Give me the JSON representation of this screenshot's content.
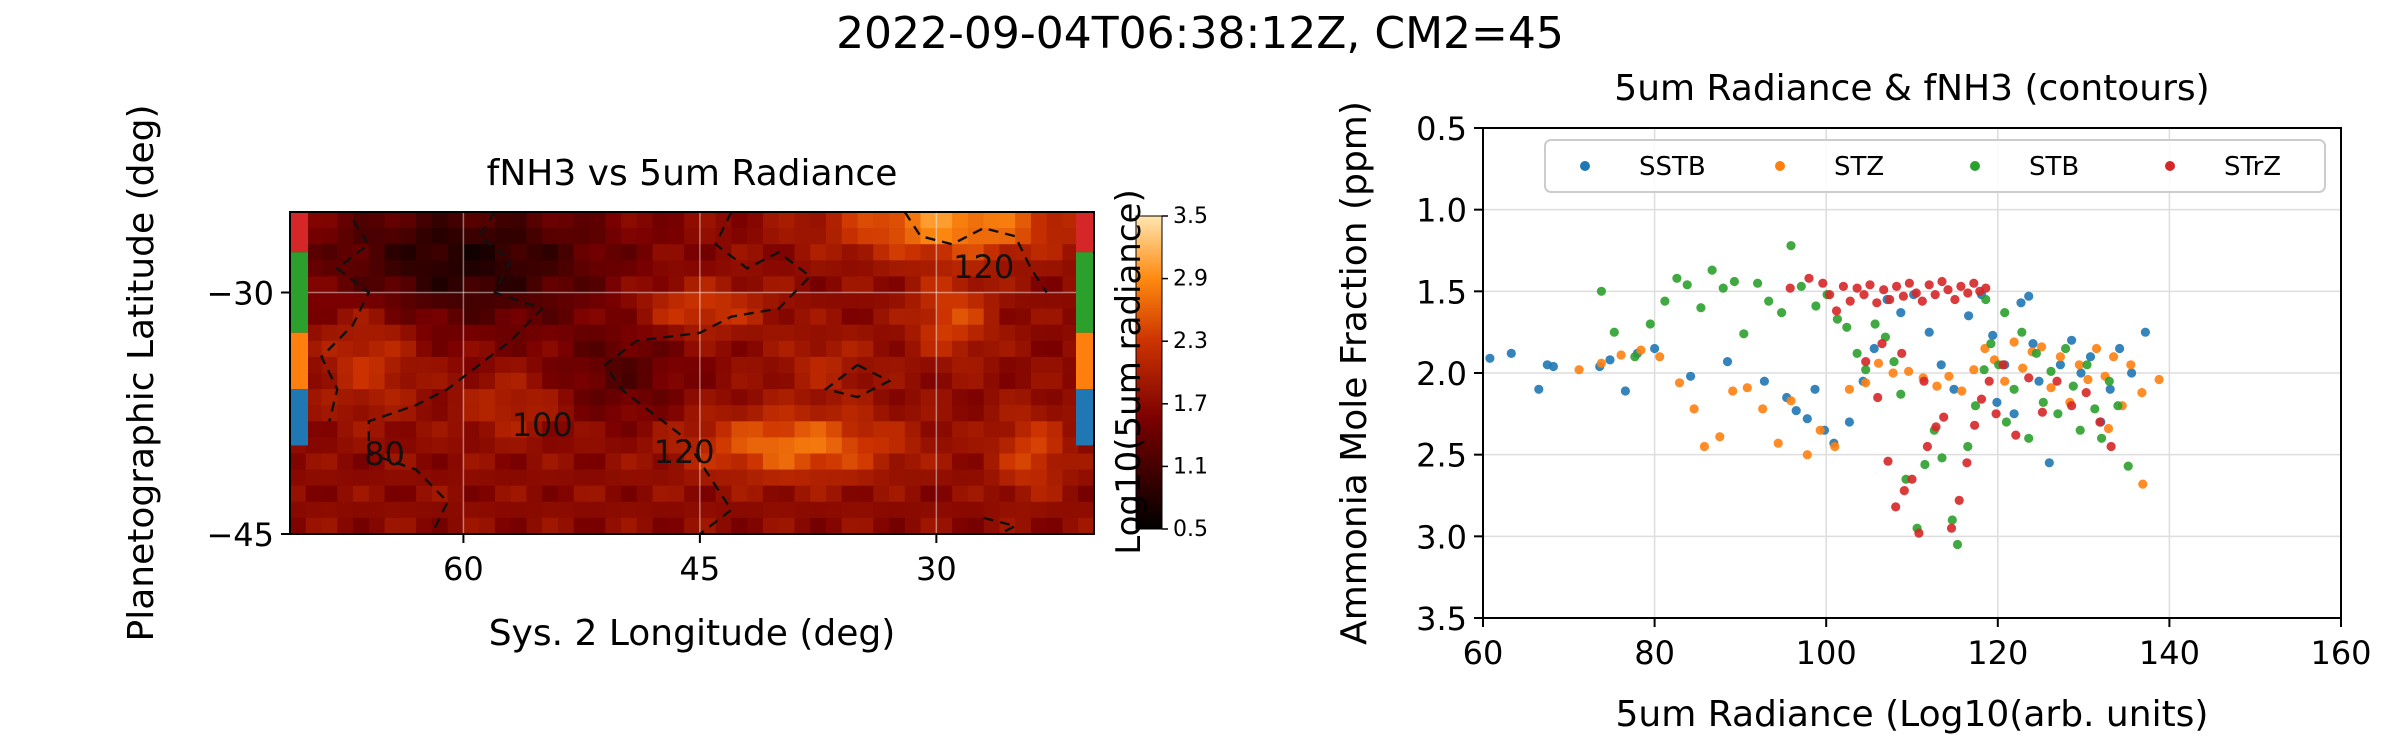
{
  "figure": {
    "suptitle": "2022-09-04T06:38:12Z, CM2=45"
  },
  "chart_data": [
    {
      "type": "heatmap",
      "title": "fNH3 vs 5um Radiance",
      "xlabel": "Sys. 2 Longitude (deg)",
      "ylabel": "Planetographic Latitude (deg)",
      "xlim": [
        71,
        20
      ],
      "ylim": [
        -45,
        -25
      ],
      "xticks": [
        60,
        45,
        30
      ],
      "yticks": [
        -30,
        -45
      ],
      "colorbar": {
        "label": "Log10(5um radiance)",
        "range": [
          0.5,
          3.5
        ],
        "ticks": [
          "3.5",
          "2.9",
          "2.3",
          "1.7",
          "1.1",
          "0.5"
        ],
        "colormap": "gist_heat"
      },
      "contour_labels": [
        {
          "text": "120",
          "lon": 27,
          "lat": -29.1
        },
        {
          "text": "100",
          "lon": 55,
          "lat": -38.9
        },
        {
          "text": "80",
          "lon": 65,
          "lat": -40.7
        },
        {
          "text": "120",
          "lon": 46,
          "lat": -40.6
        }
      ],
      "band_markers": [
        {
          "band": "STrZ",
          "lat_range": [
            -27.5,
            -25
          ],
          "color": "#d62728"
        },
        {
          "band": "STB",
          "lat_range": [
            -32.5,
            -27.5
          ],
          "color": "#2ca02c"
        },
        {
          "band": "STZ",
          "lat_range": [
            -36,
            -32.5
          ],
          "color": "#ff7f0e"
        },
        {
          "band": "SSTB",
          "lat_range": [
            -39.5,
            -36
          ],
          "color": "#1f77b4"
        }
      ]
    },
    {
      "type": "scatter",
      "title": "5um Radiance & fNH3 (contours)",
      "xlabel": "5um Radiance (Log10(arb. units)",
      "ylabel": "Ammonia Mole Fraction (ppm)",
      "xlim": [
        60,
        160
      ],
      "ylim": [
        3.5,
        0.5
      ],
      "xticks": [
        60,
        80,
        100,
        120,
        140,
        160
      ],
      "yticks": [
        "0.5",
        "1.0",
        "1.5",
        "2.0",
        "2.5",
        "3.0",
        "3.5"
      ],
      "grid": true,
      "legend": "top",
      "series": [
        {
          "name": "SSTB",
          "color": "#1f77b4",
          "points": [
            [
              60.8,
              1.91
            ],
            [
              63.3,
              1.88
            ],
            [
              66.5,
              2.1
            ],
            [
              67.5,
              1.95
            ],
            [
              68.2,
              1.96
            ],
            [
              73.6,
              1.96
            ],
            [
              74.8,
              1.92
            ],
            [
              76.6,
              2.11
            ],
            [
              78.0,
              1.88
            ],
            [
              80.0,
              1.85
            ],
            [
              84.2,
              2.02
            ],
            [
              88.5,
              1.93
            ],
            [
              92.8,
              2.05
            ],
            [
              95.4,
              2.15
            ],
            [
              96.5,
              2.23
            ],
            [
              97.8,
              2.28
            ],
            [
              98.7,
              2.1
            ],
            [
              99.8,
              2.35
            ],
            [
              100.9,
              2.43
            ],
            [
              102.7,
              2.3
            ],
            [
              104.3,
              2.05
            ],
            [
              105.6,
              1.85
            ],
            [
              107.1,
              1.55
            ],
            [
              108.7,
              1.63
            ],
            [
              110.2,
              1.52
            ],
            [
              112.0,
              1.75
            ],
            [
              113.4,
              1.95
            ],
            [
              114.9,
              2.1
            ],
            [
              116.6,
              1.65
            ],
            [
              118.1,
              1.52
            ],
            [
              119.4,
              1.77
            ],
            [
              120.8,
              1.95
            ],
            [
              121.9,
              2.25
            ],
            [
              122.7,
              1.57
            ],
            [
              124.1,
              1.82
            ],
            [
              124.8,
              2.05
            ],
            [
              126.0,
              2.55
            ],
            [
              127.3,
              1.95
            ],
            [
              128.6,
              1.8
            ],
            [
              129.7,
              2.0
            ],
            [
              130.8,
              1.9
            ],
            [
              132.0,
              2.3
            ],
            [
              133.1,
              2.1
            ],
            [
              134.2,
              1.85
            ],
            [
              135.6,
              2.0
            ],
            [
              137.2,
              1.75
            ],
            [
              123.6,
              1.53
            ],
            [
              119.9,
              2.18
            ]
          ]
        },
        {
          "name": "STZ",
          "color": "#ff7f0e",
          "points": [
            [
              71.2,
              1.98
            ],
            [
              73.8,
              1.94
            ],
            [
              76.1,
              1.89
            ],
            [
              78.4,
              1.86
            ],
            [
              80.6,
              1.9
            ],
            [
              82.9,
              2.06
            ],
            [
              84.6,
              2.22
            ],
            [
              85.8,
              2.45
            ],
            [
              87.6,
              2.39
            ],
            [
              89.1,
              2.11
            ],
            [
              90.8,
              2.09
            ],
            [
              92.6,
              2.22
            ],
            [
              94.4,
              2.43
            ],
            [
              95.9,
              2.17
            ],
            [
              97.8,
              2.5
            ],
            [
              99.3,
              2.35
            ],
            [
              101.0,
              2.45
            ],
            [
              102.7,
              2.1
            ],
            [
              104.6,
              2.06
            ],
            [
              106.1,
              1.94
            ],
            [
              107.8,
              2.0
            ],
            [
              109.6,
              1.99
            ],
            [
              111.3,
              2.03
            ],
            [
              112.9,
              2.08
            ],
            [
              114.3,
              2.02
            ],
            [
              115.8,
              2.11
            ],
            [
              117.2,
              1.98
            ],
            [
              118.5,
              1.85
            ],
            [
              119.6,
              1.92
            ],
            [
              120.8,
              2.05
            ],
            [
              121.9,
              1.81
            ],
            [
              122.9,
              1.97
            ],
            [
              124.0,
              1.87
            ],
            [
              125.1,
              1.84
            ],
            [
              126.2,
              2.09
            ],
            [
              127.3,
              1.9
            ],
            [
              128.4,
              2.18
            ],
            [
              129.5,
              1.95
            ],
            [
              130.5,
              2.04
            ],
            [
              131.5,
              1.85
            ],
            [
              132.5,
              2.02
            ],
            [
              133.5,
              1.9
            ],
            [
              134.5,
              2.2
            ],
            [
              135.5,
              1.95
            ],
            [
              136.8,
              2.12
            ],
            [
              138.8,
              2.04
            ],
            [
              136.9,
              2.68
            ],
            [
              132.9,
              2.34
            ]
          ]
        },
        {
          "name": "STB",
          "color": "#2ca02c",
          "points": [
            [
              73.8,
              1.5
            ],
            [
              75.3,
              1.75
            ],
            [
              77.7,
              1.9
            ],
            [
              79.5,
              1.7
            ],
            [
              81.2,
              1.56
            ],
            [
              82.6,
              1.42
            ],
            [
              83.8,
              1.46
            ],
            [
              85.4,
              1.6
            ],
            [
              86.7,
              1.37
            ],
            [
              88.0,
              1.48
            ],
            [
              89.3,
              1.44
            ],
            [
              90.4,
              1.76
            ],
            [
              92.0,
              1.45
            ],
            [
              93.3,
              1.56
            ],
            [
              94.8,
              1.63
            ],
            [
              95.9,
              1.22
            ],
            [
              97.1,
              1.47
            ],
            [
              98.8,
              1.59
            ],
            [
              100.1,
              1.52
            ],
            [
              101.3,
              1.67
            ],
            [
              102.4,
              1.72
            ],
            [
              103.6,
              1.88
            ],
            [
              104.6,
              1.98
            ],
            [
              105.7,
              1.7
            ],
            [
              106.9,
              1.78
            ],
            [
              107.9,
              1.93
            ],
            [
              108.7,
              2.13
            ],
            [
              109.3,
              2.65
            ],
            [
              110.6,
              2.95
            ],
            [
              111.5,
              2.56
            ],
            [
              112.6,
              2.35
            ],
            [
              113.5,
              2.52
            ],
            [
              114.7,
              2.9
            ],
            [
              115.3,
              3.05
            ],
            [
              116.5,
              2.45
            ],
            [
              117.4,
              2.2
            ],
            [
              118.4,
              1.98
            ],
            [
              119.2,
              1.82
            ],
            [
              120.1,
              1.95
            ],
            [
              121.0,
              2.3
            ],
            [
              121.9,
              2.1
            ],
            [
              122.8,
              1.75
            ],
            [
              123.6,
              2.4
            ],
            [
              124.5,
              1.88
            ],
            [
              125.3,
              2.18
            ],
            [
              126.2,
              1.99
            ],
            [
              127.0,
              2.25
            ],
            [
              127.9,
              1.85
            ],
            [
              128.8,
              2.08
            ],
            [
              129.6,
              2.35
            ],
            [
              130.4,
              1.95
            ],
            [
              131.3,
              2.22
            ],
            [
              132.1,
              2.4
            ],
            [
              133.0,
              2.05
            ],
            [
              134.0,
              2.2
            ],
            [
              135.2,
              2.57
            ],
            [
              118.6,
              1.55
            ],
            [
              120.8,
              1.63
            ]
          ]
        },
        {
          "name": "STrZ",
          "color": "#d62728",
          "points": [
            [
              95.8,
              1.48
            ],
            [
              98.0,
              1.42
            ],
            [
              99.6,
              1.45
            ],
            [
              100.4,
              1.52
            ],
            [
              101.2,
              1.62
            ],
            [
              102.0,
              1.47
            ],
            [
              102.8,
              1.56
            ],
            [
              103.6,
              1.48
            ],
            [
              104.4,
              1.52
            ],
            [
              105.1,
              1.46
            ],
            [
              105.9,
              1.57
            ],
            [
              106.7,
              1.49
            ],
            [
              107.4,
              1.55
            ],
            [
              108.2,
              1.47
            ],
            [
              109.0,
              1.53
            ],
            [
              109.7,
              1.45
            ],
            [
              110.5,
              1.51
            ],
            [
              111.2,
              1.56
            ],
            [
              112.0,
              1.46
            ],
            [
              112.7,
              1.52
            ],
            [
              113.5,
              1.44
            ],
            [
              114.2,
              1.49
            ],
            [
              115.0,
              1.55
            ],
            [
              115.7,
              1.47
            ],
            [
              116.5,
              1.51
            ],
            [
              117.2,
              1.45
            ],
            [
              117.9,
              1.5
            ],
            [
              118.6,
              1.48
            ],
            [
              104.6,
              1.93
            ],
            [
              106.0,
              2.15
            ],
            [
              107.2,
              2.54
            ],
            [
              108.1,
              2.82
            ],
            [
              109.1,
              2.72
            ],
            [
              110.0,
              2.65
            ],
            [
              110.8,
              2.98
            ],
            [
              111.8,
              2.45
            ],
            [
              112.8,
              2.33
            ],
            [
              113.7,
              2.27
            ],
            [
              114.6,
              2.95
            ],
            [
              115.5,
              2.78
            ],
            [
              116.4,
              2.55
            ],
            [
              117.3,
              2.32
            ],
            [
              118.1,
              2.16
            ],
            [
              119.0,
              2.05
            ],
            [
              119.8,
              2.25
            ],
            [
              120.6,
              1.95
            ],
            [
              122.1,
              2.38
            ],
            [
              123.6,
              2.03
            ],
            [
              125.2,
              2.24
            ],
            [
              126.9,
              2.05
            ],
            [
              128.6,
              2.2
            ],
            [
              130.3,
              2.12
            ],
            [
              131.9,
              2.3
            ],
            [
              133.2,
              2.45
            ],
            [
              106.5,
              1.82
            ],
            [
              108.8,
              1.88
            ],
            [
              111.4,
              2.05
            ]
          ]
        }
      ]
    }
  ]
}
